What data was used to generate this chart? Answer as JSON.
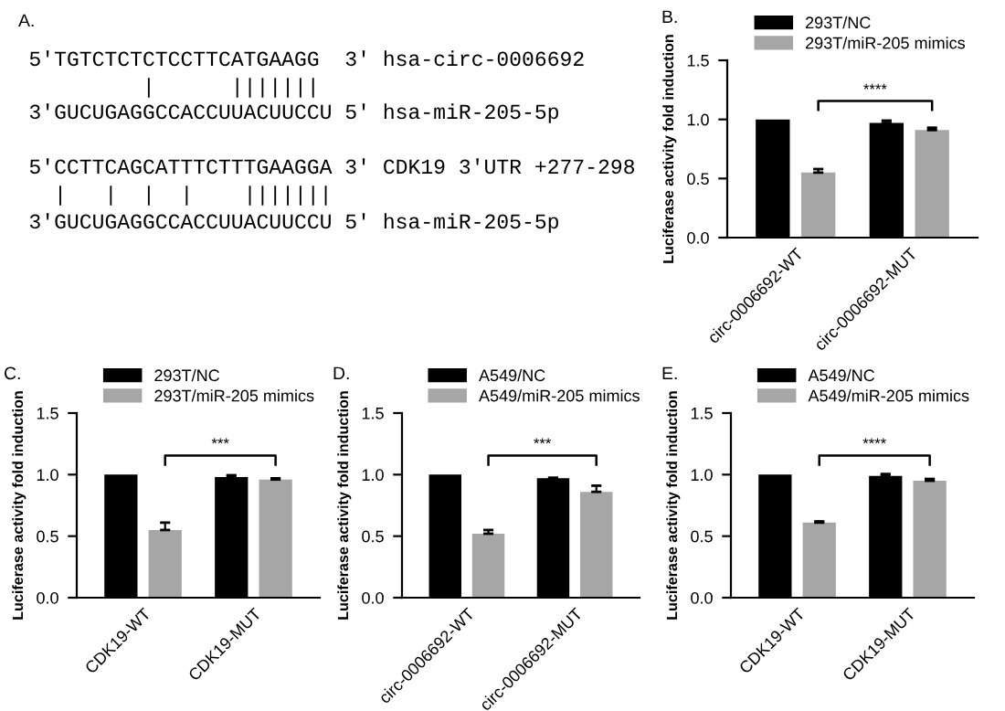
{
  "chart_data": [
    {
      "type": "other",
      "title": "A.",
      "annotations": [
        "5'TGTCTCTCTCCTTCATGAAGG  3' hsa-circ-0006692",
        "         |      |||||||",
        "3'GUCUGAGGCCACCUUACUUCCU 5' hsa-miR-205-5p",
        "5'CCTTCAGCATTTCTTTGAAGGA 3' CDK19 3'UTR +277-298",
        "  |   |  |  |    |||||||",
        "3'GUCUGAGGCCACCUUACUUCCU 5' hsa-miR-205-5p"
      ]
    },
    {
      "type": "bar",
      "title": "B.",
      "ylabel": "Luciferase activity fold induction",
      "categories": [
        "circ-0006692-WT",
        "circ-0006692-MUT"
      ],
      "series": [
        {
          "name": "293T/NC",
          "color": "#000000",
          "values": [
            1.0,
            0.97
          ],
          "errors": [
            null,
            0.02
          ]
        },
        {
          "name": "293T/miR-205 mimics",
          "color": "#a6a6a6",
          "values": [
            0.55,
            0.91
          ],
          "errors": [
            0.03,
            0.02
          ]
        }
      ],
      "ylim": [
        0,
        1.5
      ],
      "yticks": [
        {
          "value": 0,
          "label": "0.0"
        },
        {
          "value": 0.5,
          "label": "0.5"
        },
        {
          "value": 1,
          "label": "1.0"
        },
        {
          "value": 1.5,
          "label": "1.5"
        }
      ],
      "legend": "top",
      "annotations": [
        "****"
      ]
    },
    {
      "type": "bar",
      "title": "C.",
      "ylabel": "Luciferase activity fold induction",
      "categories": [
        "CDK19-WT",
        "CDK19-MUT"
      ],
      "series": [
        {
          "name": "293T/NC",
          "color": "#000000",
          "values": [
            1.0,
            0.98
          ],
          "errors": [
            null,
            0.015
          ]
        },
        {
          "name": "293T/miR-205 mimics",
          "color": "#a6a6a6",
          "values": [
            0.55,
            0.96
          ],
          "errors": [
            0.06,
            0.01
          ]
        }
      ],
      "ylim": [
        0,
        1.5
      ],
      "yticks": [
        {
          "value": 0,
          "label": "0.0"
        },
        {
          "value": 0.5,
          "label": "0.5"
        },
        {
          "value": 1,
          "label": "1.0"
        },
        {
          "value": 1.5,
          "label": "1.5"
        }
      ],
      "legend": "top",
      "annotations": [
        "***"
      ]
    },
    {
      "type": "bar",
      "title": "D.",
      "ylabel": "Luciferase activity fold induction",
      "categories": [
        "circ-0006692-WT",
        "circ-0006692-MUT"
      ],
      "series": [
        {
          "name": "A549/NC",
          "color": "#000000",
          "values": [
            1.0,
            0.97
          ],
          "errors": [
            null,
            0.005
          ]
        },
        {
          "name": "A549/miR-205 mimics",
          "color": "#a6a6a6",
          "values": [
            0.52,
            0.86
          ],
          "errors": [
            0.03,
            0.05
          ]
        }
      ],
      "ylim": [
        0,
        1.5
      ],
      "yticks": [
        {
          "value": 0,
          "label": "0.0"
        },
        {
          "value": 0.5,
          "label": "0.5"
        },
        {
          "value": 1,
          "label": "1.0"
        },
        {
          "value": 1.5,
          "label": "1.5"
        }
      ],
      "legend": "top",
      "annotations": [
        "***"
      ]
    },
    {
      "type": "bar",
      "title": "E.",
      "ylabel": "Luciferase activity fold induction",
      "categories": [
        "CDK19-WT",
        "CDK19-MUT"
      ],
      "series": [
        {
          "name": "A549/NC",
          "color": "#000000",
          "values": [
            1.0,
            0.99
          ],
          "errors": [
            null,
            0.015
          ]
        },
        {
          "name": "A549/miR-205 mimics",
          "color": "#a6a6a6",
          "values": [
            0.61,
            0.95
          ],
          "errors": [
            0.01,
            0.015
          ]
        }
      ],
      "ylim": [
        0,
        1.5
      ],
      "yticks": [
        {
          "value": 0,
          "label": "0.0"
        },
        {
          "value": 0.5,
          "label": "0.5"
        },
        {
          "value": 1,
          "label": "1.0"
        },
        {
          "value": 1.5,
          "label": "1.5"
        }
      ],
      "legend": "top",
      "annotations": [
        "****"
      ]
    }
  ]
}
